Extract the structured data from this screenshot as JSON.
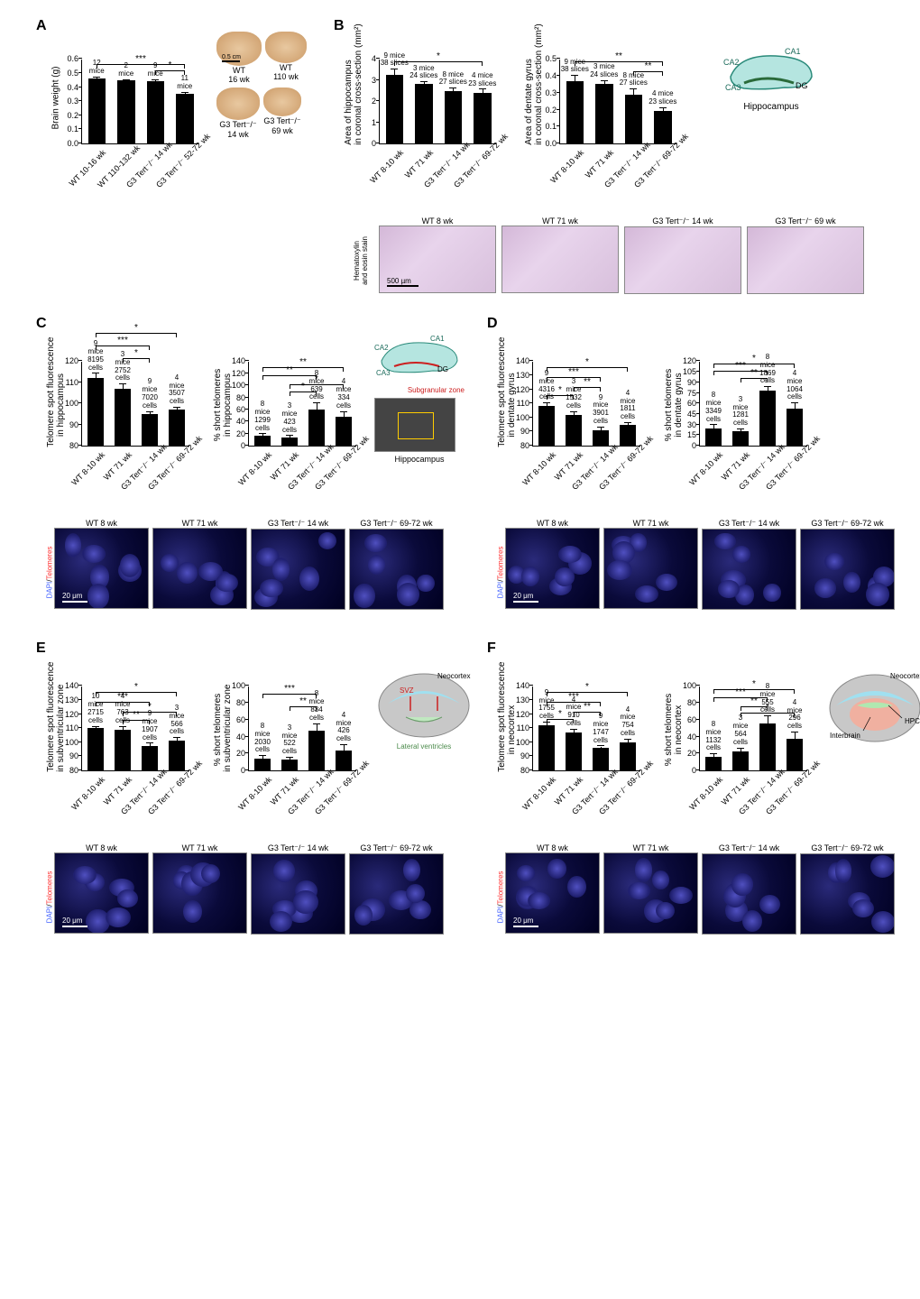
{
  "groups": [
    "WT 8-10 wk",
    "WT 71 wk",
    "G3 Tert⁻/⁻ 14 wk",
    "G3 Tert⁻/⁻ 69-72 wk"
  ],
  "groups_A": [
    "WT 10-16 wk",
    "WT 110-132 wk",
    "G3 Tert⁻/⁻ 14 wk",
    "G3 Tert⁻/⁻ 52-72 wk"
  ],
  "brain_img_labels": [
    "WT\n16 wk",
    "WT\n110 wk",
    "G3 Tert⁻/⁻\n14 wk",
    "G3 Tert⁻/⁻\n69 wk"
  ],
  "histo_labels": [
    "WT 8 wk",
    "WT 71 wk",
    "G3 Tert⁻/⁻ 14 wk",
    "G3 Tert⁻/⁻ 69 wk"
  ],
  "fluor_labels_C": [
    "WT 8 wk",
    "WT 71 wk",
    "G3 Tert⁻/⁻ 14 wk",
    "G3 Tert⁻/⁻ 69-72 wk"
  ],
  "colors": {
    "bar": "#000000",
    "bg": "#ffffff",
    "axis": "#000000"
  },
  "panelA": {
    "ylabel": "Brain weight (g)",
    "ylim": [
      0,
      0.6
    ],
    "ytick": 0.1,
    "values": [
      0.46,
      0.45,
      0.44,
      0.35
    ],
    "err": [
      0.01,
      0.0,
      0.01,
      0.01
    ],
    "n": [
      "12\nmice",
      "2\nmice",
      "9\nmice",
      "11\nmice"
    ],
    "sig": [
      {
        "from": 0,
        "to": 3,
        "label": "***",
        "y": 0.56
      },
      {
        "from": 2,
        "to": 3,
        "label": "*",
        "y": 0.51
      }
    ],
    "scale_bar": "0.5 cm"
  },
  "panelB": {
    "chart1": {
      "ylabel": "Area of hippocampus\nin coronal cross-section (mm²)",
      "ylim": [
        0,
        4
      ],
      "ytick": 1,
      "values": [
        3.25,
        2.8,
        2.5,
        2.4
      ],
      "err": [
        0.25,
        0.1,
        0.1,
        0.15
      ],
      "n": [
        "9 mice\n38 slices",
        "3 mice\n24 slices",
        "8 mice\n27 slices",
        "4 mice\n23 slices"
      ],
      "sig": [
        {
          "from": 0,
          "to": 3,
          "label": "*",
          "y": 3.85
        }
      ]
    },
    "chart2": {
      "ylabel": "Area of dentate gyrus\nin coronal cross-section (mm²)",
      "ylim": [
        0,
        0.5
      ],
      "ytick": 0.1,
      "values": [
        0.37,
        0.35,
        0.29,
        0.19
      ],
      "err": [
        0.03,
        0.02,
        0.03,
        0.02
      ],
      "n": [
        "9 mice\n38 slices",
        "3 mice\n24 slices",
        "8 mice\n27 slices",
        "4 mice\n23 slices"
      ],
      "sig": [
        {
          "from": 0,
          "to": 3,
          "label": "**",
          "y": 0.48
        },
        {
          "from": 2,
          "to": 3,
          "label": "**",
          "y": 0.42
        }
      ]
    },
    "histo_scale": "500 µm",
    "histo_side": "Hematoxylin\nand eosin stain",
    "hippo_labels": {
      "CA1": "CA1",
      "CA2": "CA2",
      "CA3": "CA3",
      "DG": "DG",
      "title": "Hippocampus"
    }
  },
  "panelC": {
    "chart1": {
      "ylabel": "Telomere spot fluorescence\nin hippocampus",
      "ylim": [
        80,
        120
      ],
      "ytick": 10,
      "values": [
        112,
        107,
        95,
        97
      ],
      "err": [
        2,
        2,
        1,
        1
      ],
      "n": [
        "9\nmice\n8195\ncells",
        "3\nmice\n2752\ncells",
        "9\nmice\n7020\ncells",
        "4\nmice\n3507\ncells"
      ],
      "sig": [
        {
          "from": 0,
          "to": 3,
          "label": "*",
          "y": 133
        },
        {
          "from": 0,
          "to": 2,
          "label": "***",
          "y": 127
        },
        {
          "from": 1,
          "to": 2,
          "label": "*",
          "y": 121
        }
      ]
    },
    "chart2": {
      "ylabel": "% short telomeres\nin hippocampus",
      "ylim": [
        0,
        140
      ],
      "ytick": 20,
      "values": [
        16,
        14,
        60,
        48
      ],
      "err": [
        3,
        2,
        10,
        8
      ],
      "n": [
        "8\nmice\n1299\ncells",
        "3\nmice\n423\ncells",
        "8\nmice\n639\ncells",
        "4\nmice\n334\ncells"
      ],
      "sig": [
        {
          "from": 0,
          "to": 3,
          "label": "**",
          "y": 128
        },
        {
          "from": 0,
          "to": 2,
          "label": "**",
          "y": 115
        },
        {
          "from": 1,
          "to": 3,
          "label": "*",
          "y": 100
        },
        {
          "from": 1,
          "to": 2,
          "label": "*",
          "y": 88
        }
      ]
    },
    "diagram": {
      "SGZ": "Subgranular zone",
      "title": "Hippocampus"
    },
    "scale": "20 μm"
  },
  "panelD": {
    "chart1": {
      "ylabel": "Telomere spot fluorescence\nin dentate gyrus",
      "ylim": [
        80,
        140
      ],
      "ytick": 10,
      "values": [
        108,
        102,
        91,
        95
      ],
      "err": [
        2,
        2,
        2,
        1
      ],
      "n": [
        "9\nmice\n4316\ncells",
        "3\nmice\n1532\ncells",
        "9\nmice\n3901\ncells",
        "4\nmice\n1811\ncells"
      ],
      "sig": [
        {
          "from": 0,
          "to": 3,
          "label": "*",
          "y": 135
        },
        {
          "from": 0,
          "to": 2,
          "label": "***",
          "y": 128
        },
        {
          "from": 1,
          "to": 2,
          "label": "**",
          "y": 121
        },
        {
          "from": 0,
          "to": 1,
          "label": "*",
          "y": 115
        }
      ]
    },
    "chart2": {
      "ylabel": "% short telomeres\nin dentate gyrus",
      "ylim": [
        0,
        120
      ],
      "ytick": 15,
      "values": [
        25,
        20,
        78,
        52
      ],
      "err": [
        4,
        3,
        5,
        8
      ],
      "n": [
        "8\nmice\n3349\ncells",
        "3\nmice\n1281\ncells",
        "8\nmice\n1869\ncells",
        "4\nmice\n1064\ncells"
      ],
      "sig": [
        {
          "from": 0,
          "to": 3,
          "label": "*",
          "y": 115
        },
        {
          "from": 0,
          "to": 2,
          "label": "***",
          "y": 105
        },
        {
          "from": 1,
          "to": 2,
          "label": "**",
          "y": 95
        }
      ]
    },
    "scale": "20 μm"
  },
  "panelE": {
    "chart1": {
      "ylabel": "Telomere spot fluorescence\nin subventricular zone",
      "ylim": [
        80,
        140
      ],
      "ytick": 10,
      "values": [
        110,
        109,
        97,
        101
      ],
      "err": [
        1,
        2,
        2,
        2
      ],
      "n": [
        "10\nmice\n2715\ncells",
        "4\nmice\n763\ncells",
        "9\nmice\n1907\ncells",
        "3\nmice\n566\ncells"
      ],
      "sig": [
        {
          "from": 0,
          "to": 3,
          "label": "*",
          "y": 135
        },
        {
          "from": 0,
          "to": 2,
          "label": "***",
          "y": 128
        },
        {
          "from": 1,
          "to": 3,
          "label": "*",
          "y": 121
        },
        {
          "from": 1,
          "to": 2,
          "label": "**",
          "y": 115
        }
      ]
    },
    "chart2": {
      "ylabel": "% short telomeres\nin subventricular zone",
      "ylim": [
        0,
        100
      ],
      "ytick": 20,
      "values": [
        14,
        13,
        47,
        24
      ],
      "err": [
        3,
        2,
        8,
        6
      ],
      "n": [
        "8\nmice\n2030\ncells",
        "3\nmice\n522\ncells",
        "8\nmice\n834\ncells",
        "4\nmice\n426\ncells"
      ],
      "sig": [
        {
          "from": 0,
          "to": 2,
          "label": "***",
          "y": 90
        },
        {
          "from": 1,
          "to": 2,
          "label": "**",
          "y": 75
        }
      ]
    },
    "diagram": {
      "SVZ": "SVZ",
      "Neo": "Neocortex",
      "LV": "Lateral ventricles"
    },
    "scale": "20 μm"
  },
  "panelF": {
    "chart1": {
      "ylabel": "Telomere spot fluorescence\nin neocortex",
      "ylim": [
        80,
        140
      ],
      "ytick": 10,
      "values": [
        112,
        107,
        96,
        100
      ],
      "err": [
        2,
        2,
        1,
        2
      ],
      "n": [
        "9\nmice\n1755\ncells",
        "4\nmice\n910\ncells",
        "9\nmice\n1747\ncells",
        "4\nmice\n754\ncells"
      ],
      "sig": [
        {
          "from": 0,
          "to": 3,
          "label": "*",
          "y": 135
        },
        {
          "from": 0,
          "to": 2,
          "label": "***",
          "y": 128
        },
        {
          "from": 1,
          "to": 2,
          "label": "**",
          "y": 121
        },
        {
          "from": 0,
          "to": 1,
          "label": "*",
          "y": 116
        }
      ]
    },
    "chart2": {
      "ylabel": "% short telomeres\nin neocortex",
      "ylim": [
        0,
        100
      ],
      "ytick": 20,
      "values": [
        16,
        22,
        56,
        37
      ],
      "err": [
        3,
        4,
        8,
        8
      ],
      "n": [
        "8\nmice\n1132\ncells",
        "3\nmice\n564\ncells",
        "8\nmice\n555\ncells",
        "4\nmice\n296\ncells"
      ],
      "sig": [
        {
          "from": 0,
          "to": 3,
          "label": "*",
          "y": 95
        },
        {
          "from": 0,
          "to": 2,
          "label": "***",
          "y": 85
        },
        {
          "from": 1,
          "to": 2,
          "label": "**",
          "y": 75
        },
        {
          "from": 1,
          "to": 3,
          "label": "*",
          "y": 67
        }
      ]
    },
    "diagram": {
      "Neo": "Neocortex",
      "IB": "Interbrain",
      "HPC": "HPC"
    },
    "scale": "20 μm"
  },
  "dapi_telo": {
    "dapi": "DAPI",
    "telo": "Telomeres",
    "sep": "/"
  }
}
